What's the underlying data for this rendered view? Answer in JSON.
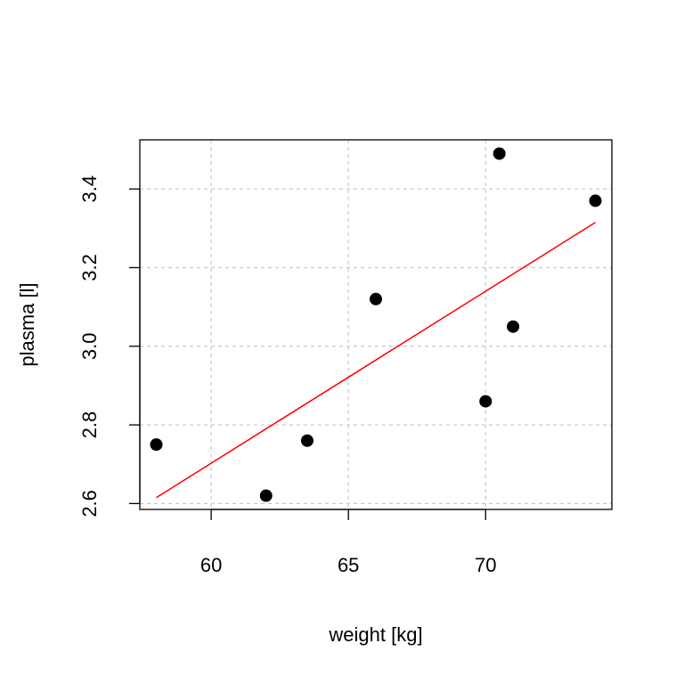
{
  "chart_data": {
    "type": "scatter",
    "title": "",
    "xlabel": "weight [kg]",
    "ylabel": "plasma [l]",
    "xlim": [
      57.4,
      74.6
    ],
    "ylim": [
      2.585,
      3.525
    ],
    "xticks": [
      60,
      65,
      70
    ],
    "yticks": [
      2.6,
      2.8,
      3.0,
      3.2,
      3.4
    ],
    "xtick_labels": [
      "60",
      "65",
      "70"
    ],
    "ytick_labels": [
      "2.6",
      "2.8",
      "3.0",
      "3.2",
      "3.4"
    ],
    "grid": true,
    "series": [
      {
        "x": [
          58.0,
          70.0,
          74.0,
          63.5,
          62.0,
          70.5,
          71.0,
          66.0
        ],
        "y": [
          2.75,
          2.86,
          3.37,
          2.76,
          2.62,
          3.49,
          3.05,
          3.12
        ],
        "color": "#000000"
      }
    ],
    "fit_line": {
      "x": [
        58.0,
        74.0
      ],
      "y": [
        2.615,
        3.315
      ],
      "color": "#ff0000"
    }
  }
}
